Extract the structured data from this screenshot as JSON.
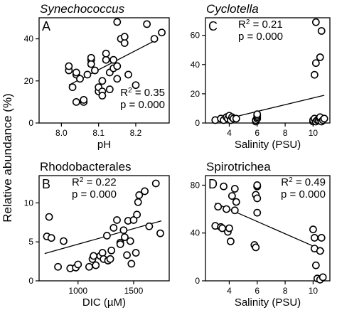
{
  "figure": {
    "ylabel": "Relative abundance (%)"
  },
  "chart_data": [
    {
      "type": "scatter",
      "panel_letter": "A",
      "title": "Synechococcus",
      "title_italic": true,
      "xlabel": "pH",
      "xlim": [
        7.94,
        8.29
      ],
      "ylim": [
        0,
        50
      ],
      "xticks": [
        "8.0",
        "8.1",
        "8.2"
      ],
      "xtick_values": [
        8.0,
        8.1,
        8.2
      ],
      "yticks": [
        "0",
        "20",
        "40"
      ],
      "ytick_values": [
        0,
        20,
        40
      ],
      "stats": [
        "R² = 0.35",
        "p = 0.000"
      ],
      "stats_position": "bottom-right",
      "trendline": [
        [
          8.02,
          18
        ],
        [
          8.25,
          39
        ]
      ],
      "x": [
        8.02,
        8.02,
        8.03,
        8.04,
        8.04,
        8.04,
        8.05,
        8.06,
        8.06,
        8.07,
        8.08,
        8.08,
        8.08,
        8.09,
        8.1,
        8.1,
        8.11,
        8.11,
        8.11,
        8.12,
        8.12,
        8.13,
        8.13,
        8.14,
        8.14,
        8.15,
        8.15,
        8.15,
        8.16,
        8.17,
        8.17,
        8.18,
        8.2,
        8.23,
        8.25,
        8.27
      ],
      "y": [
        25,
        27,
        17,
        23,
        10,
        24,
        21,
        10,
        11,
        23,
        30,
        28,
        31,
        25,
        15,
        17,
        15,
        13,
        20,
        30,
        33,
        16,
        24,
        30,
        26,
        27,
        21,
        48,
        40,
        38,
        41,
        23,
        18,
        47,
        40,
        43
      ]
    },
    {
      "type": "scatter",
      "panel_letter": "C",
      "title": "Cyclotella",
      "title_italic": true,
      "xlabel": "Salinity (PSU)",
      "xlim": [
        2.3,
        11.2
      ],
      "ylim": [
        0,
        72
      ],
      "xticks": [
        "4",
        "6",
        "8",
        "10"
      ],
      "xtick_values": [
        4,
        6,
        8,
        10
      ],
      "yticks": [
        "0",
        "20",
        "40",
        "60"
      ],
      "ytick_values": [
        0,
        20,
        40,
        60
      ],
      "stats": [
        "R² = 0.21",
        "p = 0.000"
      ],
      "stats_position": "top-left",
      "trendline": [
        [
          3,
          1
        ],
        [
          10.8,
          19
        ]
      ],
      "x": [
        3,
        3.4,
        3.6,
        3.8,
        3.9,
        4.0,
        4.1,
        4.2,
        4.3,
        4.5,
        5.9,
        5.9,
        6.0,
        6.0,
        6.0,
        6.0,
        10.0,
        10.0,
        10.1,
        10.1,
        10.2,
        10.2,
        10.2,
        10.3,
        10.4,
        10.5,
        10.5,
        10.5,
        10.6,
        10.6,
        10.7,
        10.8
      ],
      "y": [
        2,
        3,
        2,
        4,
        3,
        5,
        2,
        4,
        3,
        3,
        1,
        2,
        3,
        4,
        5,
        6,
        1,
        2,
        3,
        33,
        41,
        69,
        1,
        2,
        2,
        3,
        4,
        45,
        63,
        1,
        2,
        3
      ]
    },
    {
      "type": "scatter",
      "panel_letter": "B",
      "title": "Rhodobacterales",
      "title_italic": false,
      "xlabel": "DIC (µM)",
      "xlim": [
        650,
        1820
      ],
      "ylim": [
        0,
        13.5
      ],
      "xticks": [
        "1000",
        "1500"
      ],
      "xtick_values": [
        1000,
        1500
      ],
      "yticks": [
        "0",
        "5",
        "10"
      ],
      "ytick_values": [
        0,
        5,
        10
      ],
      "stats": [
        "R² = 0.22",
        "p = 0.000"
      ],
      "stats_position": "top-left",
      "trendline": [
        [
          700,
          3.5
        ],
        [
          1750,
          7.7
        ]
      ],
      "x": [
        720,
        740,
        760,
        820,
        870,
        930,
        980,
        1000,
        1100,
        1130,
        1140,
        1160,
        1200,
        1220,
        1230,
        1260,
        1270,
        1290,
        1300,
        1320,
        1350,
        1380,
        1380,
        1410,
        1420,
        1440,
        1450,
        1470,
        1480,
        1500,
        1520,
        1530,
        1540,
        1550,
        1600,
        1640,
        1700,
        1740
      ],
      "y": [
        5.7,
        8.2,
        5.5,
        1.8,
        5.1,
        1.6,
        1.7,
        2.1,
        1.8,
        2.8,
        3.2,
        2.0,
        3.2,
        3.6,
        2.8,
        5.8,
        2.6,
        2.8,
        3.9,
        6.8,
        7.8,
        4.9,
        4.7,
        6.5,
        5.6,
        3.3,
        7.7,
        5.1,
        2.2,
        7.8,
        3.6,
        8.5,
        10.1,
        11.0,
        11.5,
        7.0,
        12.5,
        6.1
      ]
    },
    {
      "type": "scatter",
      "panel_letter": "D",
      "title": "Spirotrichea",
      "title_italic": false,
      "xlabel": "Salinity (PSU)",
      "xlim": [
        2.3,
        11.2
      ],
      "ylim": [
        0,
        88
      ],
      "xticks": [
        "4",
        "6",
        "8",
        "10"
      ],
      "xtick_values": [
        4,
        6,
        8,
        10
      ],
      "yticks": [
        "0",
        "40",
        "80"
      ],
      "ytick_values": [
        0,
        40,
        80
      ],
      "stats": [
        "R² = 0.49",
        "p = 0.000"
      ],
      "stats_position": "top-right",
      "trendline": [
        [
          3,
          65
        ],
        [
          10.8,
          25
        ]
      ],
      "x": [
        3.0,
        3.2,
        3.4,
        3.5,
        3.6,
        3.8,
        3.9,
        4.0,
        4.1,
        4.2,
        4.4,
        4.4,
        4.5,
        5.8,
        5.9,
        5.9,
        6.0,
        6.0,
        6.0,
        6.0,
        6.0,
        10.0,
        10.1,
        10.1,
        10.2,
        10.3,
        10.5,
        10.5,
        10.6,
        10.7
      ],
      "y": [
        46,
        62,
        45,
        44,
        79,
        60,
        41,
        44,
        33,
        71,
        59,
        77,
        66,
        30,
        28,
        72,
        79,
        79,
        80,
        69,
        57,
        43,
        36,
        27,
        13,
        2,
        25,
        1,
        36,
        3
      ]
    }
  ]
}
